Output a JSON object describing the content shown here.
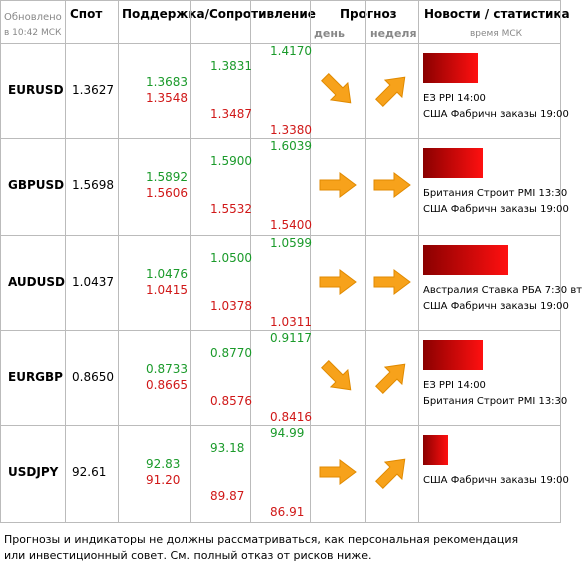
{
  "header": {
    "updated": "Обновлено",
    "updated_time": "в 10:42 МСК",
    "spot": "Спот",
    "levels": "Поддержка/Сопротивление",
    "forecast": "Прогноз",
    "day": "день",
    "week": "неделя",
    "news": "Новости / статистика",
    "news_time": "время МСК"
  },
  "rows": [
    {
      "pair": "EURUSD",
      "spot": "1.3627",
      "s1": [
        "1.3683",
        "1.3548"
      ],
      "s2": [
        "1.3831",
        "1.3487"
      ],
      "s3": [
        "1.4170",
        "1.3380"
      ],
      "news": [
        "ЕЗ PPI 14:00",
        "США Фабричн заказы 19:00"
      ]
    },
    {
      "pair": "GBPUSD",
      "spot": "1.5698",
      "s1": [
        "1.5892",
        "1.5606"
      ],
      "s2": [
        "1.5900",
        "1.5532"
      ],
      "s3": [
        "1.6039",
        "1.5400"
      ],
      "news": [
        "Британия Строит PMI 13:30",
        "США Фабричн заказы 19:00"
      ]
    },
    {
      "pair": "AUDUSD",
      "spot": "1.0437",
      "s1": [
        "1.0476",
        "1.0415"
      ],
      "s2": [
        "1.0500",
        "1.0378"
      ],
      "s3": [
        "1.0599",
        "1.0311"
      ],
      "news": [
        "Австралия Ставка РБА 7:30 вт",
        "США Фабричн заказы 19:00"
      ]
    },
    {
      "pair": "EURGBP",
      "spot": "0.8650",
      "s1": [
        "0.8733",
        "0.8665"
      ],
      "s2": [
        "0.8770",
        "0.8576"
      ],
      "s3": [
        "0.9117",
        "0.8416"
      ],
      "news": [
        "ЕЗ PPI 14:00",
        "Британия Строит PMI 13:30"
      ]
    },
    {
      "pair": "USDJPY",
      "spot": "92.61",
      "s1": [
        "92.83",
        "91.20"
      ],
      "s2": [
        "93.18",
        "89.87"
      ],
      "s3": [
        "94.99",
        "86.91"
      ],
      "news": [
        "США Фабричн заказы 19:00"
      ]
    }
  ],
  "footer": "Прогнозы и индикаторы не должны рассматриваться, как персональная рекомендация или инвестиционный совет. См. полный отказ от рисков ниже."
}
